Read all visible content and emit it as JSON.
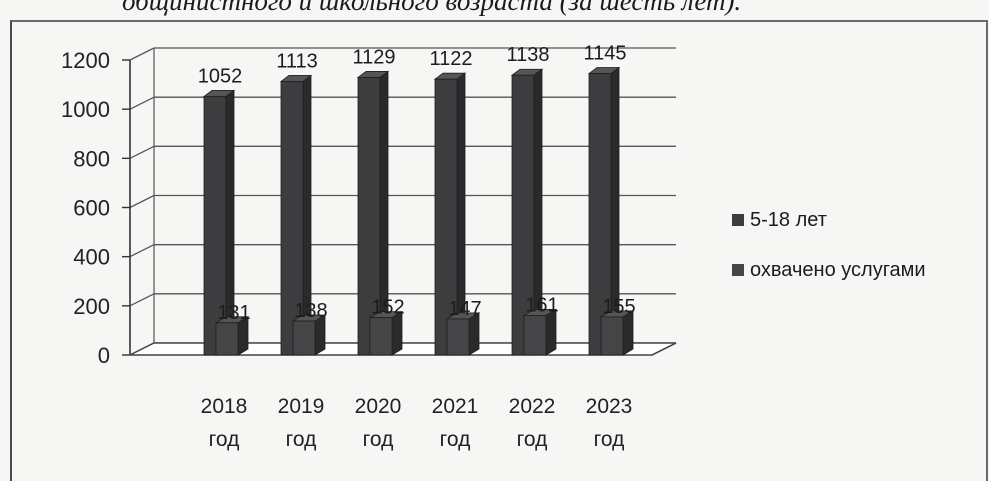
{
  "caption": "общинистного и школьного возраста (за шесть лет).",
  "chart_data": {
    "type": "bar",
    "categories": [
      [
        "2018",
        "год"
      ],
      [
        "2019",
        "год"
      ],
      [
        "2020",
        "год"
      ],
      [
        "2021",
        "год"
      ],
      [
        "2022",
        "год"
      ],
      [
        "2023",
        "год"
      ]
    ],
    "series": [
      {
        "name": "5-18 лет",
        "values": [
          1052,
          1113,
          1129,
          1122,
          1138,
          1145
        ],
        "color": "#3d3d3f"
      },
      {
        "name": "охвачено услугами",
        "values": [
          131,
          138,
          152,
          147,
          161,
          155
        ],
        "color": "#454547"
      }
    ],
    "yticks": [
      0,
      200,
      400,
      600,
      800,
      1000,
      1200
    ],
    "ylim": [
      0,
      1200
    ],
    "grid": true,
    "legend": "right",
    "three_d": true
  }
}
